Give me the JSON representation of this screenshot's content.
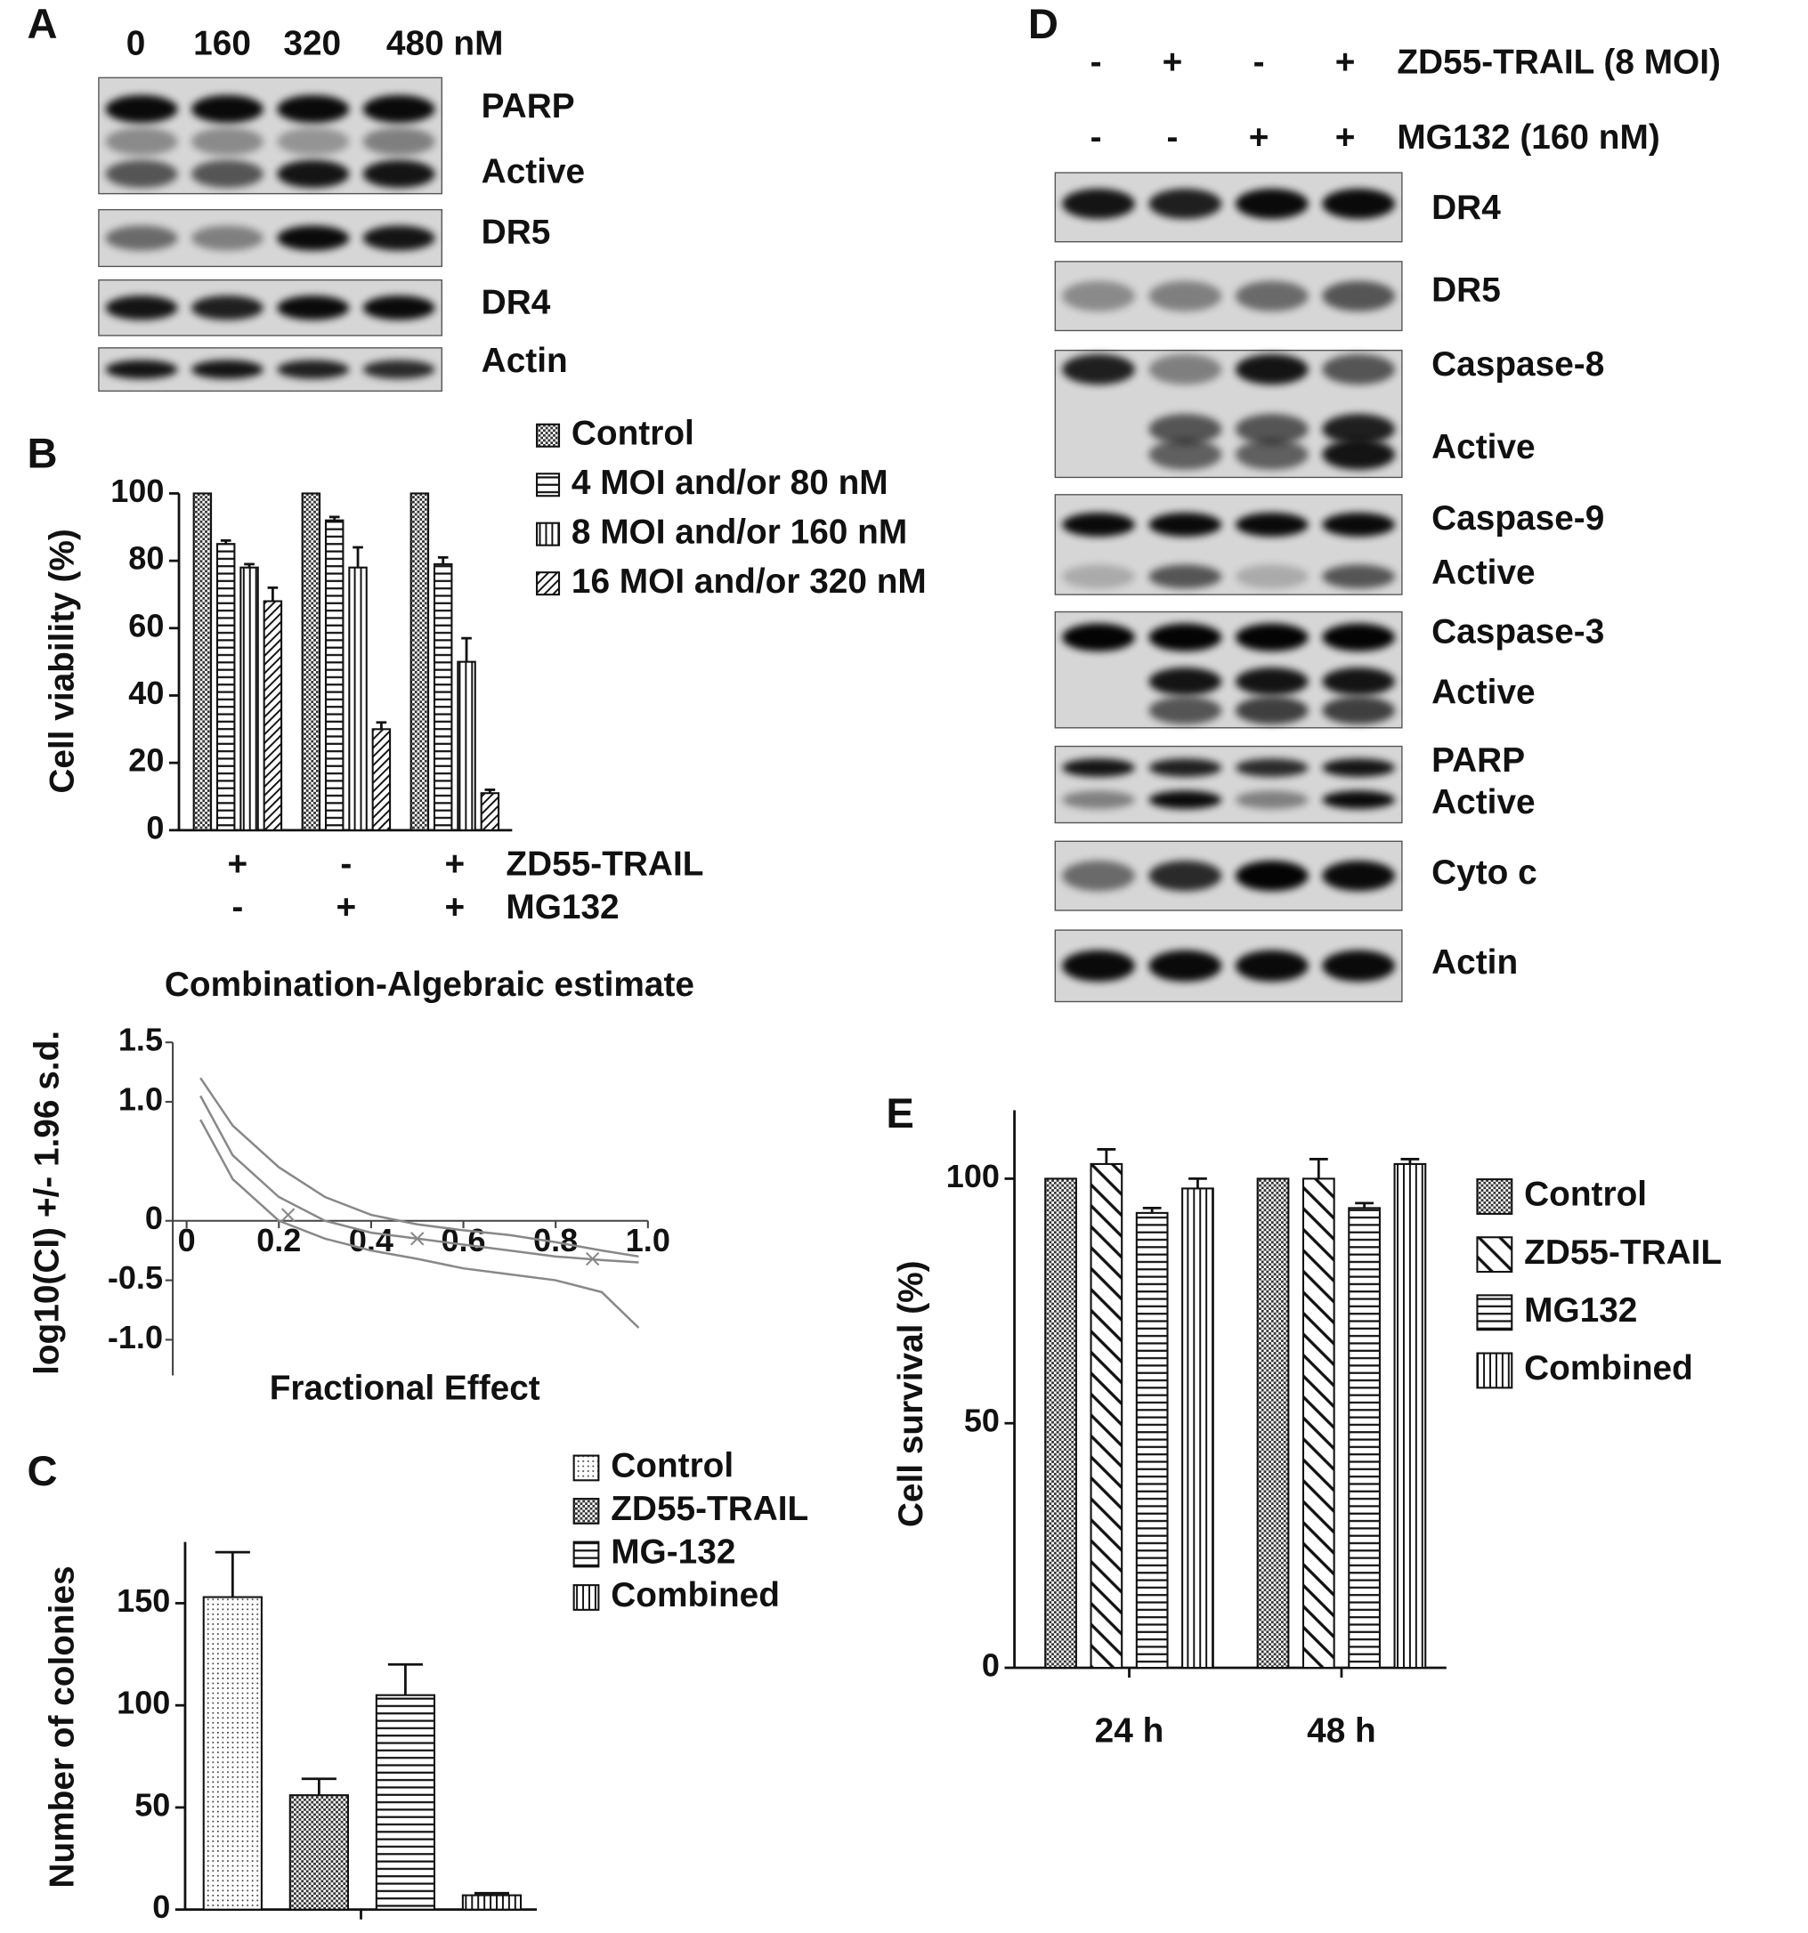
{
  "blots": [
    {
      "panel": "A",
      "lanes": [
        "0",
        "160",
        "320",
        "480 nM"
      ],
      "rows": [
        {
          "labels": [
            "PARP",
            "Active"
          ]
        },
        {
          "labels": [
            "DR5"
          ]
        },
        {
          "labels": [
            "DR4"
          ]
        },
        {
          "labels": [
            "Actin"
          ]
        }
      ]
    },
    {
      "panel": "D",
      "conditions": [
        {
          "name": "ZD55-TRAIL (8 MOI)",
          "signs": [
            "-",
            "+",
            "-",
            "+"
          ]
        },
        {
          "name": "MG132 (160 nM)",
          "signs": [
            "-",
            "-",
            "+",
            "+"
          ]
        }
      ],
      "rows": [
        {
          "labels": [
            "DR4"
          ]
        },
        {
          "labels": [
            "DR5"
          ]
        },
        {
          "labels": [
            "Caspase-8",
            "Active"
          ]
        },
        {
          "labels": [
            "Caspase-9",
            "Active"
          ]
        },
        {
          "labels": [
            "Caspase-3",
            "Active"
          ]
        },
        {
          "labels": [
            "PARP",
            "Active"
          ]
        },
        {
          "labels": [
            "Cyto c"
          ]
        },
        {
          "labels": [
            "Actin"
          ]
        }
      ]
    }
  ],
  "chart_data": [
    {
      "type": "bar",
      "panel": "B",
      "y_label": "Cell viability (%)",
      "categories": [
        null,
        null,
        null
      ],
      "conditions": [
        {
          "name": "ZD55-TRAIL",
          "signs": [
            "+",
            "-",
            "+"
          ]
        },
        {
          "name": "MG132",
          "signs": [
            "-",
            "+",
            "+"
          ]
        }
      ],
      "series": [
        {
          "name": "Control",
          "pattern": "checker",
          "values": [
            100,
            100,
            100
          ],
          "errors": [
            0,
            0,
            0
          ]
        },
        {
          "name": "4 MOI and/or 80 nM",
          "pattern": "hlines",
          "values": [
            85,
            92,
            79
          ],
          "errors": [
            1,
            1,
            2
          ]
        },
        {
          "name": "8 MOI and/or 160 nM",
          "pattern": "vlines",
          "values": [
            78,
            78,
            50
          ],
          "errors": [
            1,
            6,
            7
          ]
        },
        {
          "name": "16 MOI and/or 320 nM",
          "pattern": "diag",
          "values": [
            68,
            30,
            11
          ],
          "errors": [
            4,
            2,
            1
          ]
        }
      ],
      "ylim": [
        0,
        100
      ],
      "yticks": [
        0,
        20,
        40,
        60,
        80,
        100
      ]
    },
    {
      "type": "line",
      "title": "Combination-Algebraic estimate",
      "x_label": "Fractional Effect",
      "y_label": "log10(CI) +/- 1.96 s.d.",
      "color": "#888888",
      "series": [
        {
          "x": [
            0.03,
            0.1,
            0.2,
            0.3,
            0.4,
            0.5,
            0.6,
            0.7,
            0.8,
            0.9,
            0.98
          ],
          "values": [
            1.2,
            0.8,
            0.45,
            0.2,
            0.05,
            -0.03,
            -0.08,
            -0.12,
            -0.18,
            -0.25,
            -0.3
          ]
        },
        {
          "x": [
            0.03,
            0.1,
            0.2,
            0.3,
            0.4,
            0.5,
            0.6,
            0.7,
            0.8,
            0.9,
            0.98
          ],
          "values": [
            1.05,
            0.55,
            0.2,
            0.0,
            -0.1,
            -0.15,
            -0.2,
            -0.25,
            -0.3,
            -0.33,
            -0.35
          ]
        },
        {
          "x": [
            0.03,
            0.1,
            0.2,
            0.3,
            0.4,
            0.5,
            0.6,
            0.7,
            0.8,
            0.9,
            0.98
          ],
          "values": [
            0.85,
            0.35,
            0.0,
            -0.15,
            -0.25,
            -0.32,
            -0.4,
            -0.45,
            -0.5,
            -0.6,
            -0.9
          ]
        },
        {
          "marker": "x",
          "x": [
            0.22,
            0.5,
            0.88
          ],
          "values": [
            0.05,
            -0.15,
            -0.32
          ]
        }
      ],
      "xlim": [
        -0.03,
        1.0
      ],
      "xticks": [
        0,
        0.2,
        0.4,
        0.6,
        0.8,
        {
          "value": 1,
          "label": "1.0"
        }
      ],
      "ylim": [
        -1.3,
        1.5
      ],
      "yticks": [
        1.5,
        {
          "value": 1,
          "label": "1.0"
        },
        0,
        -0.5,
        {
          "value": -1,
          "label": "-1.0"
        }
      ]
    },
    {
      "type": "bar",
      "panel": "C",
      "y_label": "Number of colonies",
      "categories": [
        null
      ],
      "series": [
        {
          "name": "Control",
          "pattern": "dots",
          "values": [
            153
          ],
          "errors": [
            22
          ]
        },
        {
          "name": "ZD55-TRAIL",
          "pattern": "checker",
          "values": [
            56
          ],
          "errors": [
            8
          ]
        },
        {
          "name": "MG-132",
          "pattern": "hlines",
          "values": [
            105
          ],
          "errors": [
            15
          ]
        },
        {
          "name": "Combined",
          "pattern": "vlines",
          "values": [
            7
          ],
          "errors": [
            1
          ]
        }
      ],
      "ylim": [
        0,
        180
      ],
      "yticks": [
        0,
        50,
        100,
        150
      ]
    },
    {
      "type": "bar",
      "panel": "E",
      "y_label": "Cell survival (%)",
      "categories": [
        "24 h",
        "48 h"
      ],
      "series": [
        {
          "name": "Control",
          "pattern": "checker",
          "values": [
            100,
            100
          ],
          "errors": [
            0,
            0
          ]
        },
        {
          "name": "ZD55-TRAIL",
          "pattern": "wide-diag",
          "values": [
            103,
            100
          ],
          "errors": [
            3,
            4
          ]
        },
        {
          "name": "MG132",
          "pattern": "hlines",
          "values": [
            93,
            94
          ],
          "errors": [
            1,
            1
          ]
        },
        {
          "name": "Combined",
          "pattern": "vlines",
          "values": [
            98,
            103
          ],
          "errors": [
            2,
            1
          ]
        }
      ],
      "ylim": [
        0,
        114
      ],
      "yticks": [
        0,
        50,
        100
      ]
    }
  ]
}
